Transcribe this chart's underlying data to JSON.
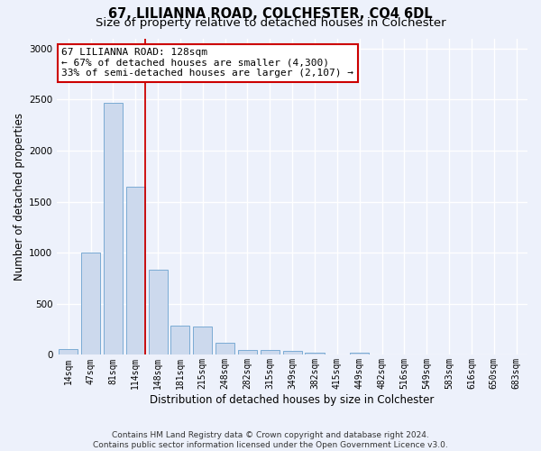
{
  "title": "67, LILIANNA ROAD, COLCHESTER, CO4 6DL",
  "subtitle": "Size of property relative to detached houses in Colchester",
  "xlabel": "Distribution of detached houses by size in Colchester",
  "ylabel": "Number of detached properties",
  "categories": [
    "14sqm",
    "47sqm",
    "81sqm",
    "114sqm",
    "148sqm",
    "181sqm",
    "215sqm",
    "248sqm",
    "282sqm",
    "315sqm",
    "349sqm",
    "382sqm",
    "415sqm",
    "449sqm",
    "482sqm",
    "516sqm",
    "549sqm",
    "583sqm",
    "616sqm",
    "650sqm",
    "683sqm"
  ],
  "values": [
    55,
    1000,
    2470,
    1650,
    830,
    290,
    280,
    115,
    50,
    50,
    35,
    20,
    0,
    25,
    0,
    0,
    0,
    0,
    0,
    0,
    0
  ],
  "bar_color": "#ccd9ed",
  "bar_edge_color": "#7aabd4",
  "background_color": "#edf1fb",
  "grid_color": "#ffffff",
  "annotation_text": "67 LILIANNA ROAD: 128sqm\n← 67% of detached houses are smaller (4,300)\n33% of semi-detached houses are larger (2,107) →",
  "annotation_box_color": "#ffffff",
  "annotation_border_color": "#cc0000",
  "vline_x_index": 3.45,
  "vline_color": "#cc0000",
  "ylim": [
    0,
    3100
  ],
  "footnote": "Contains HM Land Registry data © Crown copyright and database right 2024.\nContains public sector information licensed under the Open Government Licence v3.0.",
  "title_fontsize": 10.5,
  "subtitle_fontsize": 9.5,
  "xlabel_fontsize": 8.5,
  "ylabel_fontsize": 8.5,
  "tick_fontsize": 7,
  "annotation_fontsize": 8,
  "footnote_fontsize": 6.5
}
